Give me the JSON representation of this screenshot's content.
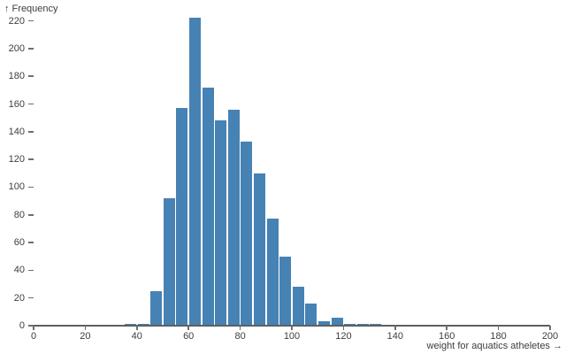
{
  "chart": {
    "y_title": "↑ Frequency",
    "x_title": "weight for aquatics atheletes →"
  },
  "chart_data": {
    "type": "bar",
    "subtype": "histogram",
    "title": "",
    "xlabel": "weight for aquatics atheletes",
    "ylabel": "Frequency",
    "bin_width": 5,
    "bins": [
      {
        "x0": 35,
        "x1": 40,
        "count": 1
      },
      {
        "x0": 40,
        "x1": 45,
        "count": 1
      },
      {
        "x0": 45,
        "x1": 50,
        "count": 25
      },
      {
        "x0": 50,
        "x1": 55,
        "count": 92
      },
      {
        "x0": 55,
        "x1": 60,
        "count": 157
      },
      {
        "x0": 60,
        "x1": 65,
        "count": 222
      },
      {
        "x0": 65,
        "x1": 70,
        "count": 172
      },
      {
        "x0": 70,
        "x1": 75,
        "count": 148
      },
      {
        "x0": 75,
        "x1": 80,
        "count": 156
      },
      {
        "x0": 80,
        "x1": 85,
        "count": 133
      },
      {
        "x0": 85,
        "x1": 90,
        "count": 110
      },
      {
        "x0": 90,
        "x1": 95,
        "count": 77
      },
      {
        "x0": 95,
        "x1": 100,
        "count": 50
      },
      {
        "x0": 100,
        "x1": 105,
        "count": 28
      },
      {
        "x0": 105,
        "x1": 110,
        "count": 16
      },
      {
        "x0": 110,
        "x1": 115,
        "count": 3
      },
      {
        "x0": 115,
        "x1": 120,
        "count": 6
      },
      {
        "x0": 120,
        "x1": 125,
        "count": 1
      },
      {
        "x0": 125,
        "x1": 130,
        "count": 1
      },
      {
        "x0": 130,
        "x1": 135,
        "count": 1
      }
    ],
    "x_ticks": [
      0,
      20,
      40,
      60,
      80,
      100,
      120,
      140,
      160,
      180,
      200
    ],
    "y_ticks": [
      0,
      20,
      40,
      60,
      80,
      100,
      120,
      140,
      160,
      180,
      200,
      220
    ],
    "xlim": [
      0,
      200
    ],
    "ylim": [
      0,
      222
    ],
    "grid": false,
    "legend": "none"
  },
  "colors": {
    "bar": "#4682b4",
    "axis": "#6e6e6e",
    "rule": "#5f5f5f",
    "text": "#3d3d3d"
  }
}
